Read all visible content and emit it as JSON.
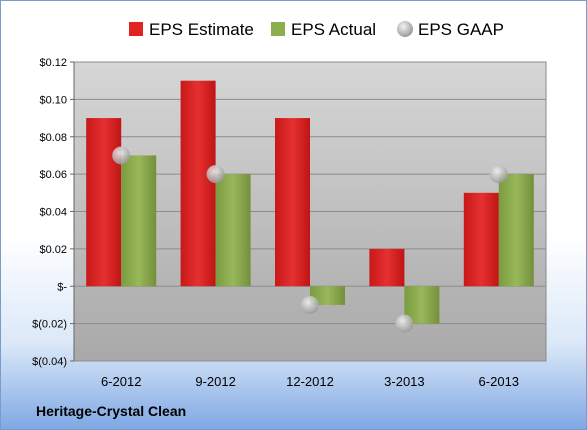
{
  "company_label": "Heritage-Crystal Clean",
  "chart_data": {
    "type": "bar",
    "categories": [
      "6-2012",
      "9-2012",
      "12-2012",
      "3-2013",
      "6-2013"
    ],
    "series": [
      {
        "name": "EPS Estimate",
        "color": "#e02424",
        "values": [
          0.09,
          0.11,
          0.09,
          0.02,
          0.05
        ]
      },
      {
        "name": "EPS Actual",
        "color": "#8dae4e",
        "values": [
          0.07,
          0.06,
          -0.01,
          -0.02,
          0.06
        ]
      },
      {
        "name": "EPS GAAP",
        "color": "#c8c8c8",
        "marker": "circle",
        "values": [
          0.07,
          0.06,
          -0.01,
          -0.02,
          0.06
        ]
      }
    ],
    "ylim": [
      -0.04,
      0.12
    ],
    "yticks": [
      0.12,
      0.1,
      0.08,
      0.06,
      0.04,
      0.02,
      0,
      -0.02,
      -0.04
    ],
    "ytick_labels": [
      "$0.12",
      "$0.10",
      "$0.08",
      "$0.06",
      "$0.04",
      "$0.02",
      "$-",
      "$(0.02)",
      "$(0.04)"
    ],
    "grid": true,
    "legend": "top"
  }
}
